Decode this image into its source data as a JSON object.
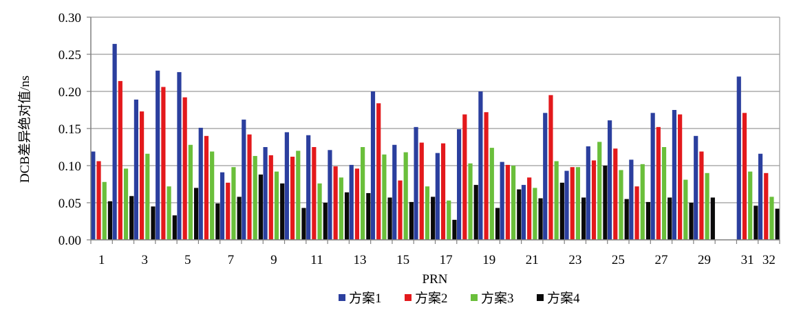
{
  "chart_data": {
    "type": "bar",
    "title": "",
    "xlabel": "PRN",
    "ylabel": "DCB差异绝对值/ns",
    "ylim": [
      0,
      0.3
    ],
    "yticks": [
      "0.00",
      "0.05",
      "0.10",
      "0.15",
      "0.20",
      "0.25",
      "0.30"
    ],
    "grid": true,
    "legend_position": "bottom",
    "categories": [
      "1",
      "2",
      "3",
      "4",
      "5",
      "6",
      "7",
      "8",
      "9",
      "10",
      "11",
      "12",
      "13",
      "14",
      "15",
      "16",
      "17",
      "18",
      "19",
      "20",
      "21",
      "22",
      "23",
      "24",
      "25",
      "26",
      "27",
      "28",
      "29",
      "30",
      "31",
      "32"
    ],
    "category_labels": [
      "1",
      "",
      "3",
      "",
      "5",
      "",
      "7",
      "",
      "9",
      "",
      "11",
      "",
      "13",
      "",
      "15",
      "",
      "17",
      "",
      "19",
      "",
      "21",
      "",
      "23",
      "",
      "25",
      "",
      "27",
      "",
      "29",
      "",
      "31",
      "32"
    ],
    "series": [
      {
        "name": "方案1",
        "color": "#2b3f9e",
        "values": [
          0.119,
          0.264,
          0.189,
          0.228,
          0.226,
          0.151,
          0.091,
          0.162,
          0.125,
          0.145,
          0.141,
          0.121,
          0.101,
          0.2,
          0.128,
          0.152,
          0.117,
          0.149,
          0.2,
          0.105,
          0.074,
          0.171,
          0.093,
          0.126,
          0.161,
          0.108,
          0.171,
          0.175,
          0.14,
          null,
          0.22,
          0.116
        ]
      },
      {
        "name": "方案2",
        "color": "#e3191c",
        "values": [
          0.106,
          0.214,
          0.173,
          0.206,
          0.192,
          0.14,
          0.077,
          0.142,
          0.114,
          0.112,
          0.125,
          0.099,
          0.096,
          0.184,
          0.08,
          0.131,
          0.13,
          0.169,
          0.172,
          0.101,
          0.084,
          0.195,
          0.098,
          0.107,
          0.123,
          0.072,
          0.152,
          0.169,
          0.119,
          null,
          0.171,
          0.09
        ]
      },
      {
        "name": "方案3",
        "color": "#6abf3b",
        "values": [
          0.078,
          0.096,
          0.116,
          0.072,
          0.128,
          0.119,
          0.098,
          0.113,
          0.092,
          0.12,
          0.076,
          0.084,
          0.125,
          0.115,
          0.118,
          0.072,
          0.053,
          0.103,
          0.124,
          0.1,
          0.07,
          0.106,
          0.098,
          0.132,
          0.094,
          0.102,
          0.125,
          0.081,
          0.09,
          null,
          0.092,
          0.058
        ]
      },
      {
        "name": "方案4",
        "color": "#0a0a0a",
        "values": [
          0.052,
          0.059,
          0.045,
          0.033,
          0.07,
          0.049,
          0.058,
          0.088,
          0.076,
          0.043,
          0.05,
          0.064,
          0.063,
          0.057,
          0.051,
          0.058,
          0.027,
          0.074,
          0.043,
          0.068,
          0.056,
          0.077,
          0.057,
          0.1,
          0.055,
          0.051,
          0.057,
          0.05,
          0.057,
          null,
          0.046,
          0.042
        ]
      }
    ]
  }
}
